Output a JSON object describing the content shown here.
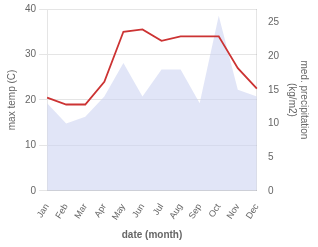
{
  "chart_data": {
    "type": "line",
    "xlabel": "date (month)",
    "ylabel": "max temp (C)",
    "y2label": "med. precipitation\n(kg/m2)",
    "categories": [
      "Jan",
      "Feb",
      "Mar",
      "Apr",
      "May",
      "Jun",
      "Jul",
      "Aug",
      "Sep",
      "Oct",
      "Nov",
      "Dec"
    ],
    "series": [
      {
        "type": "area",
        "axis": "y2",
        "color": "#c8d0f0",
        "values": [
          13,
          10,
          11,
          14,
          19,
          14,
          18,
          18,
          13,
          26,
          15,
          14
        ]
      },
      {
        "type": "line",
        "color": "#cc3333",
        "values": [
          20.5,
          19.0,
          19.0,
          24.0,
          35.0,
          35.5,
          33.0,
          34.0,
          34.0,
          34.0,
          27.0,
          22.5
        ]
      }
    ],
    "ylim": [
      0,
      40
    ],
    "yticks": [
      0,
      10,
      20,
      30,
      40
    ],
    "y2lim": [
      0,
      27
    ],
    "y2ticks": [
      0,
      5,
      10,
      15,
      20,
      25
    ],
    "grid": true
  }
}
